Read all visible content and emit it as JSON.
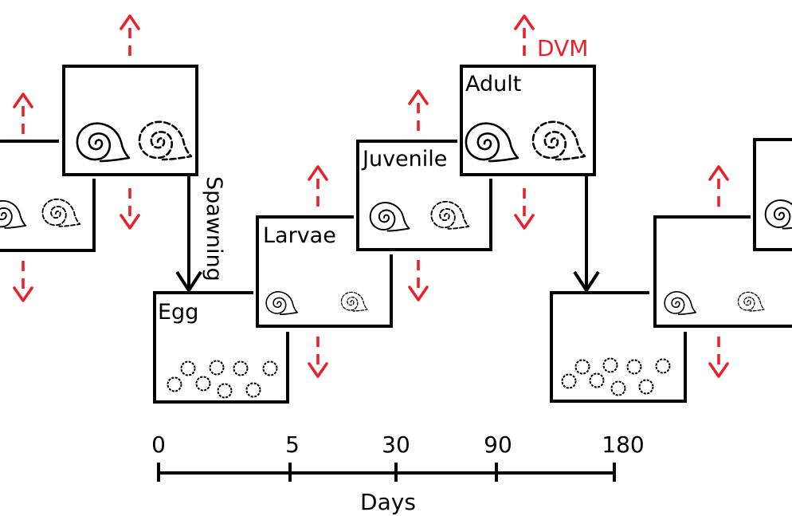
{
  "stages": {
    "egg": "Egg",
    "larvae": "Larvae",
    "juvenile": "Juvenile",
    "adult": "Adult"
  },
  "annotations": {
    "spawning": "Spawning",
    "dvm": "DVM"
  },
  "timeline": {
    "ticks": [
      "0",
      "5",
      "30",
      "90",
      "180"
    ],
    "label": "Days"
  },
  "colors": {
    "line": "#000000",
    "migration_arrow": "#e8222a"
  }
}
